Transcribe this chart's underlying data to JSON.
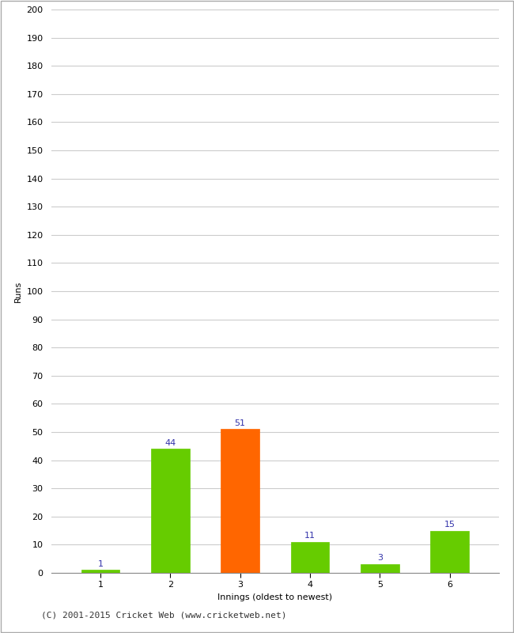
{
  "categories": [
    1,
    2,
    3,
    4,
    5,
    6
  ],
  "values": [
    1,
    44,
    51,
    11,
    3,
    15
  ],
  "bar_colors": [
    "#66cc00",
    "#66cc00",
    "#ff6600",
    "#66cc00",
    "#66cc00",
    "#66cc00"
  ],
  "xlabel": "Innings (oldest to newest)",
  "ylabel": "Runs",
  "ylim": [
    0,
    200
  ],
  "yticks": [
    0,
    10,
    20,
    30,
    40,
    50,
    60,
    70,
    80,
    90,
    100,
    110,
    120,
    130,
    140,
    150,
    160,
    170,
    180,
    190,
    200
  ],
  "label_color": "#3333aa",
  "background_color": "#ffffff",
  "footer": "(C) 2001-2015 Cricket Web (www.cricketweb.net)",
  "grid_color": "#cccccc",
  "bar_width": 0.55,
  "label_fontsize": 8,
  "axis_fontsize": 8,
  "ylabel_fontsize": 8,
  "xlabel_fontsize": 8,
  "footer_fontsize": 8,
  "border_color": "#aaaaaa"
}
